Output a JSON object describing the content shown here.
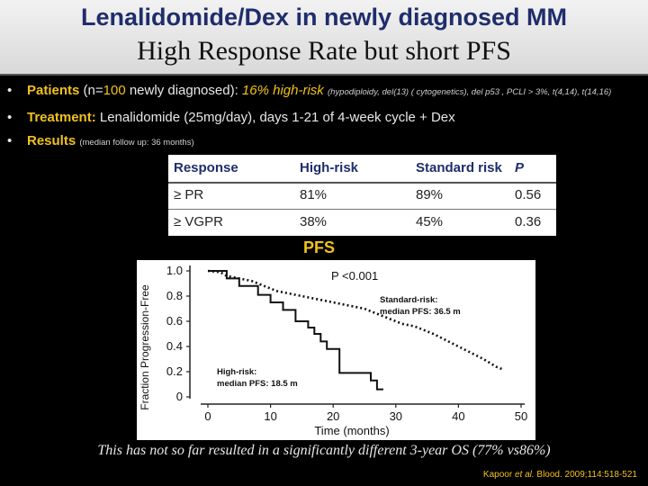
{
  "title": {
    "line1": "Lenalidomide/Dex in newly diagnosed MM",
    "line2": "High Response Rate  but short PFS"
  },
  "bullets": {
    "patients": {
      "label": "Patients",
      "n_open": "(n=",
      "n": "100",
      "rest": " newly diagnosed):",
      "highrisk": "16% high-risk",
      "detail": "(hypodiploidy, del(13) ( cytogenetics), del p53 , PCLI > 3%, t(4,14),  t(14,16)"
    },
    "treatment": {
      "label": "Treatment:",
      "text": "Lenalidomide (25mg/day), days 1-21 of 4-week cycle + Dex"
    },
    "results": {
      "label": "Results",
      "detail": "(median follow up: 36 months)"
    }
  },
  "table": {
    "headers": [
      "Response",
      "High-risk",
      "Standard risk",
      "P"
    ],
    "rows": [
      [
        "≥ PR",
        "81%",
        "89%",
        "0.56"
      ],
      [
        "≥ VGPR",
        "38%",
        "45%",
        "0.36"
      ]
    ]
  },
  "pfs_label": "PFS",
  "chart_data": {
    "type": "line",
    "ylabel": "Fraction Progression-Free",
    "xlabel": "Time (months)",
    "xlim": [
      0,
      50
    ],
    "ylim": [
      0,
      1.0
    ],
    "xticks": [
      0,
      10,
      20,
      30,
      40,
      50
    ],
    "yticks": [
      0,
      0.2,
      0.4,
      0.6,
      0.8,
      1.0
    ],
    "ytick_labels": [
      "0",
      "0.2",
      "0.4",
      "0.6",
      "0.8",
      "1.0"
    ],
    "annotations": {
      "pvalue": "P <0.001",
      "standard_line1": "Standard-risk:",
      "standard_line2": "median PFS: 36.5 m",
      "high_line1": "High-risk:",
      "high_line2": "median PFS: 18.5 m"
    },
    "series": [
      {
        "style": "solid",
        "x": [
          0,
          3,
          3,
          5,
          5,
          8,
          8,
          10,
          10,
          12,
          12,
          14,
          14,
          16,
          16,
          17,
          17,
          18,
          18,
          19,
          19,
          21,
          21,
          26,
          26,
          27,
          27,
          28
        ],
        "y": [
          1.0,
          1.0,
          0.94,
          0.94,
          0.88,
          0.88,
          0.81,
          0.81,
          0.75,
          0.75,
          0.69,
          0.69,
          0.6,
          0.6,
          0.55,
          0.55,
          0.5,
          0.5,
          0.44,
          0.44,
          0.38,
          0.38,
          0.19,
          0.19,
          0.13,
          0.13,
          0.06,
          0.06
        ]
      },
      {
        "style": "dotted",
        "x": [
          0,
          2,
          3,
          5,
          7,
          9,
          11,
          13,
          15,
          17,
          19,
          21,
          23,
          25,
          27,
          29,
          31,
          33,
          35,
          36,
          38,
          40,
          42,
          44,
          46,
          47
        ],
        "y": [
          1.0,
          0.99,
          0.96,
          0.94,
          0.92,
          0.88,
          0.84,
          0.82,
          0.8,
          0.78,
          0.76,
          0.74,
          0.72,
          0.7,
          0.66,
          0.62,
          0.58,
          0.56,
          0.52,
          0.5,
          0.45,
          0.4,
          0.35,
          0.3,
          0.24,
          0.22
        ]
      }
    ]
  },
  "footer": "This has not so far resulted in a significantly different 3-year OS (77% vs86%)",
  "citation": {
    "authors": "Kapoor ",
    "etal": "et al.",
    "ref": " Blood. 2009;114:518-521"
  },
  "colors": {
    "background": "#000000",
    "accent": "#f1c21b",
    "title_blue": "#1f2d6b"
  }
}
